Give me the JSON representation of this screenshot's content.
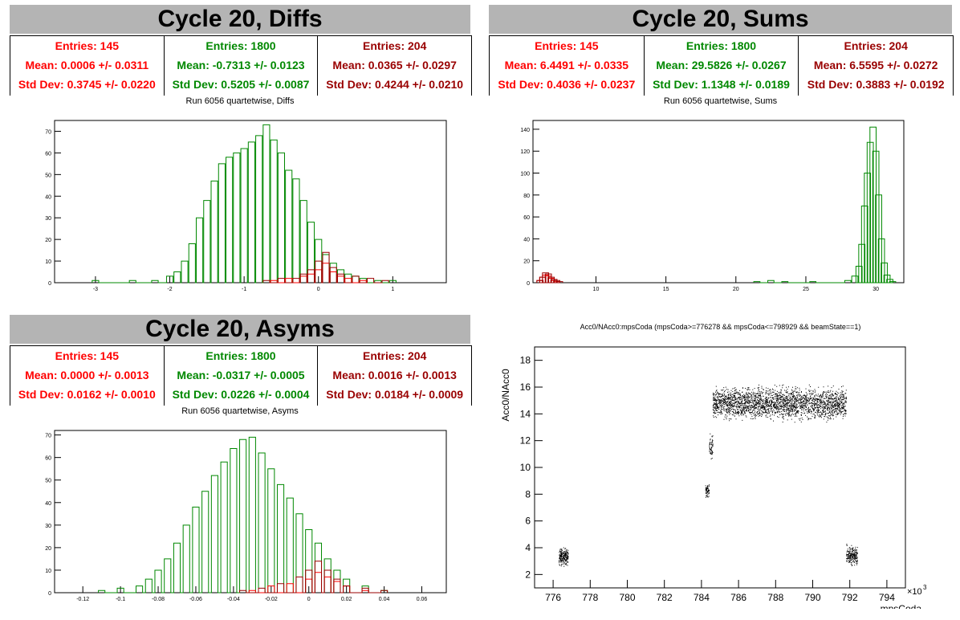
{
  "colors": {
    "red": "#ff0000",
    "green": "#008800",
    "darkred": "#990000",
    "title_bg": "#b4b4b4"
  },
  "panels": {
    "diffs": {
      "title": "Cycle 20, Diffs",
      "subtitle": "Run 6056 quartetwise, Diffs",
      "stats": [
        {
          "entries": "Entries: 145",
          "mean": "Mean: 0.0006 +/- 0.0311",
          "std": "Std Dev: 0.3745 +/- 0.0220",
          "color": "red"
        },
        {
          "entries": "Entries: 1800",
          "mean": "Mean: -0.7313 +/- 0.0123",
          "std": "Std Dev: 0.5205 +/- 0.0087",
          "color": "green"
        },
        {
          "entries": "Entries: 204",
          "mean": "Mean: 0.0365 +/- 0.0297",
          "std": "Std Dev: 0.4244 +/- 0.0210",
          "color": "darkred"
        }
      ]
    },
    "sums": {
      "title": "Cycle 20, Sums",
      "subtitle": "Run 6056 quartetwise, Sums",
      "stats": [
        {
          "entries": "Entries: 145",
          "mean": "Mean: 6.4491 +/- 0.0335",
          "std": "Std Dev: 0.4036 +/- 0.0237",
          "color": "red"
        },
        {
          "entries": "Entries: 1800",
          "mean": "Mean: 29.5826 +/- 0.0267",
          "std": "Std Dev: 1.1348 +/- 0.0189",
          "color": "green"
        },
        {
          "entries": "Entries: 204",
          "mean": "Mean: 6.5595 +/- 0.0272",
          "std": "Std Dev: 0.3883 +/- 0.0192",
          "color": "darkred"
        }
      ]
    },
    "asyms": {
      "title": "Cycle 20, Asyms",
      "subtitle": "Run 6056 quartetwise, Asyms",
      "stats": [
        {
          "entries": "Entries: 145",
          "mean": "Mean: 0.0000 +/- 0.0013",
          "std": "Std Dev: 0.0162 +/- 0.0010",
          "color": "red"
        },
        {
          "entries": "Entries: 1800",
          "mean": "Mean: -0.0317 +/- 0.0005",
          "std": "Std Dev: 0.0226 +/- 0.0004",
          "color": "green"
        },
        {
          "entries": "Entries: 204",
          "mean": "Mean: 0.0016 +/- 0.0013",
          "std": "Std Dev: 0.0184 +/- 0.0009",
          "color": "darkred"
        }
      ]
    },
    "scatter": {
      "title": "Acc0/NAcc0:mpsCoda (mpsCoda>=776278 && mpsCoda<=798929 && beamState==1)",
      "ylabel": "Acc0/NAcc0",
      "xlabel": "mpsCoda",
      "exponent": "×10",
      "exponent_power": "3"
    }
  },
  "chart_data": [
    {
      "type": "histogram",
      "name": "diffs",
      "xlim": [
        -3.55,
        1.72
      ],
      "ylim": [
        0,
        75
      ],
      "xticks": [
        -3,
        -2,
        -1,
        0,
        1
      ],
      "yticks": [
        0,
        10,
        20,
        30,
        40,
        50,
        60,
        70
      ],
      "series": [
        {
          "color": "green",
          "x": [
            -3.0,
            -2.5,
            -2.2,
            -2.0,
            -1.9,
            -1.8,
            -1.7,
            -1.6,
            -1.5,
            -1.4,
            -1.3,
            -1.2,
            -1.1,
            -1.0,
            -0.9,
            -0.8,
            -0.7,
            -0.6,
            -0.5,
            -0.4,
            -0.3,
            -0.2,
            -0.1,
            0.0,
            0.1,
            0.2,
            0.3,
            0.4,
            0.5,
            0.6,
            0.8,
            1.0
          ],
          "y": [
            1,
            1,
            1,
            3,
            5,
            10,
            18,
            30,
            38,
            47,
            55,
            58,
            60,
            62,
            65,
            68,
            73,
            66,
            60,
            52,
            48,
            38,
            28,
            20,
            13,
            9,
            6,
            4,
            3,
            2,
            1,
            1
          ]
        },
        {
          "color": "red",
          "x": [
            -0.6,
            -0.4,
            -0.2,
            -0.1,
            0.0,
            0.1,
            0.2,
            0.3,
            0.4,
            0.6
          ],
          "y": [
            1,
            2,
            3,
            4,
            6,
            9,
            5,
            3,
            2,
            1
          ]
        },
        {
          "color": "darkred",
          "x": [
            -0.7,
            -0.5,
            -0.3,
            -0.2,
            -0.1,
            0.0,
            0.1,
            0.2,
            0.3,
            0.5,
            0.7,
            0.9
          ],
          "y": [
            1,
            2,
            2,
            4,
            6,
            10,
            14,
            7,
            4,
            3,
            2,
            1
          ]
        }
      ]
    },
    {
      "type": "histogram",
      "name": "sums",
      "xlim": [
        5.5,
        32
      ],
      "ylim": [
        0,
        148
      ],
      "xticks": [
        10,
        15,
        20,
        25,
        30
      ],
      "yticks": [
        0,
        20,
        40,
        60,
        80,
        100,
        120,
        140
      ],
      "series": [
        {
          "color": "green",
          "x": [
            21.5,
            22.5,
            23.5,
            25.5,
            28.0,
            28.5,
            28.8,
            29.0,
            29.2,
            29.4,
            29.6,
            29.8,
            30.0,
            30.2,
            30.4,
            30.6,
            30.8,
            31.0,
            31.2
          ],
          "y": [
            1,
            2,
            1,
            1,
            2,
            6,
            15,
            35,
            70,
            100,
            128,
            142,
            120,
            80,
            40,
            18,
            7,
            3,
            1
          ]
        },
        {
          "color": "red",
          "x": [
            6.0,
            6.2,
            6.4,
            6.6,
            6.8,
            7.0,
            7.2
          ],
          "y": [
            2,
            5,
            7,
            6,
            4,
            2,
            1
          ]
        },
        {
          "color": "darkred",
          "x": [
            6.0,
            6.2,
            6.4,
            6.6,
            6.8,
            7.0,
            7.2,
            7.4
          ],
          "y": [
            2,
            5,
            9,
            8,
            5,
            3,
            2,
            1
          ]
        }
      ]
    },
    {
      "type": "histogram",
      "name": "asyms",
      "xlim": [
        -0.135,
        0.073
      ],
      "ylim": [
        0,
        72
      ],
      "xticks": [
        -0.12,
        -0.1,
        -0.08,
        -0.06,
        -0.04,
        -0.02,
        0,
        0.02,
        0.04,
        0.06
      ],
      "yticks": [
        0,
        10,
        20,
        30,
        40,
        50,
        60,
        70
      ],
      "series": [
        {
          "color": "green",
          "x": [
            -0.11,
            -0.1,
            -0.09,
            -0.085,
            -0.08,
            -0.075,
            -0.07,
            -0.065,
            -0.06,
            -0.055,
            -0.05,
            -0.045,
            -0.04,
            -0.035,
            -0.03,
            -0.025,
            -0.02,
            -0.015,
            -0.01,
            -0.005,
            0.0,
            0.005,
            0.01,
            0.015,
            0.02,
            0.03,
            0.04
          ],
          "y": [
            1,
            2,
            3,
            6,
            10,
            15,
            22,
            30,
            38,
            45,
            52,
            58,
            64,
            68,
            69,
            62,
            55,
            48,
            42,
            35,
            28,
            22,
            15,
            10,
            6,
            3,
            1
          ]
        },
        {
          "color": "red",
          "x": [
            -0.03,
            -0.02,
            -0.01,
            0.0,
            0.005,
            0.01,
            0.015,
            0.02,
            0.03
          ],
          "y": [
            1,
            3,
            4,
            6,
            9,
            7,
            5,
            3,
            1
          ]
        },
        {
          "color": "darkred",
          "x": [
            -0.035,
            -0.025,
            -0.015,
            -0.005,
            0.0,
            0.005,
            0.01,
            0.015,
            0.02,
            0.03,
            0.04
          ],
          "y": [
            1,
            2,
            4,
            7,
            10,
            14,
            10,
            6,
            3,
            2,
            1
          ]
        }
      ]
    },
    {
      "type": "scatter",
      "name": "acc0-vs-mpscoda",
      "xlim": [
        775,
        795
      ],
      "ylim": [
        1,
        19
      ],
      "xticks": [
        776,
        778,
        780,
        782,
        784,
        786,
        788,
        790,
        792,
        794
      ],
      "yticks": [
        2,
        4,
        6,
        8,
        10,
        12,
        14,
        16,
        18
      ],
      "clusters": [
        {
          "x": [
            776.3,
            776.8
          ],
          "y": [
            2.5,
            4.2
          ],
          "count": 220
        },
        {
          "x": [
            784.2,
            784.4
          ],
          "y": [
            7.5,
            9.0
          ],
          "count": 60
        },
        {
          "x": [
            784.4,
            784.6
          ],
          "y": [
            10.5,
            12.8
          ],
          "count": 60
        },
        {
          "x": [
            784.6,
            791.8
          ],
          "y": [
            13.2,
            16.4
          ],
          "count": 2500
        },
        {
          "x": [
            791.8,
            792.4
          ],
          "y": [
            2.5,
            4.4
          ],
          "count": 220
        }
      ]
    }
  ]
}
